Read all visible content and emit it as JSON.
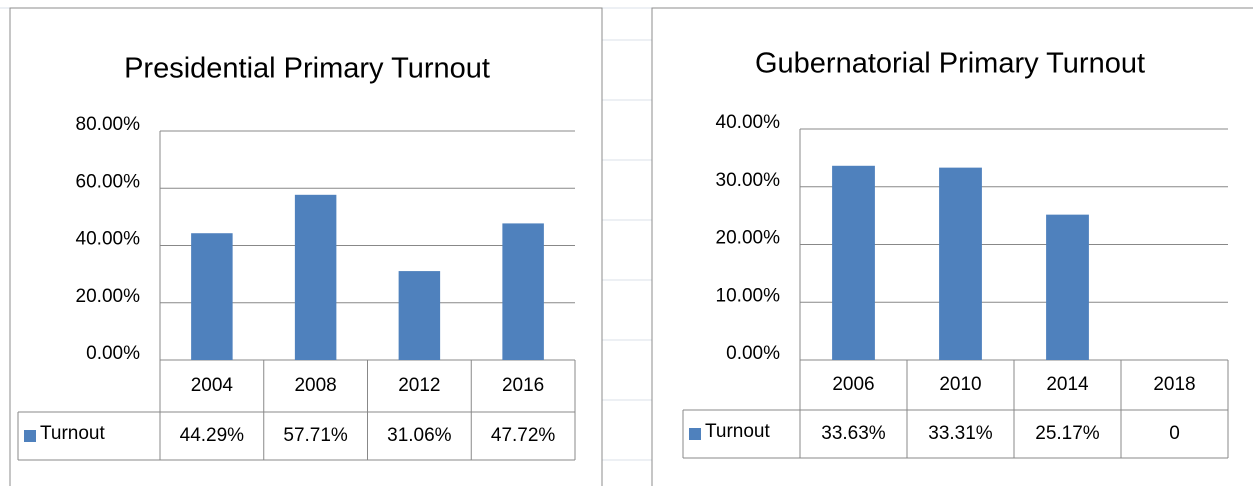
{
  "chart_data": [
    {
      "type": "bar",
      "title": "Presidential Primary Turnout",
      "categories": [
        "2004",
        "2008",
        "2012",
        "2016"
      ],
      "series": [
        {
          "name": "Turnout",
          "color": "#4f81bd",
          "values": [
            44.29,
            57.71,
            31.06,
            47.72
          ],
          "value_labels": [
            "44.29%",
            "57.71%",
            "31.06%",
            "47.72%"
          ]
        }
      ],
      "ylim": [
        0,
        80
      ],
      "yticks": [
        {
          "value": 0,
          "label": "0.00%"
        },
        {
          "value": 20,
          "label": "20.00%"
        },
        {
          "value": 40,
          "label": "40.00%"
        },
        {
          "value": 60,
          "label": "60.00%"
        },
        {
          "value": 80,
          "label": "80.00%"
        }
      ],
      "grid": true
    },
    {
      "type": "bar",
      "title": "Gubernatorial Primary Turnout",
      "categories": [
        "2006",
        "2010",
        "2014",
        "2018"
      ],
      "series": [
        {
          "name": "Turnout",
          "color": "#4f81bd",
          "values": [
            33.63,
            33.31,
            25.17,
            0
          ],
          "value_labels": [
            "33.63%",
            "33.31%",
            "25.17%",
            "0"
          ]
        }
      ],
      "ylim": [
        0,
        40
      ],
      "yticks": [
        {
          "value": 0,
          "label": "0.00%"
        },
        {
          "value": 10,
          "label": "10.00%"
        },
        {
          "value": 20,
          "label": "20.00%"
        },
        {
          "value": 30,
          "label": "30.00%"
        },
        {
          "value": 40,
          "label": "40.00%"
        }
      ],
      "grid": true
    }
  ]
}
